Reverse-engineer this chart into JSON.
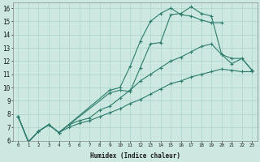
{
  "xlabel": "Humidex (Indice chaleur)",
  "bg_color": "#cce8e0",
  "line_color": "#2e7d6e",
  "grid_color": "#aad4cc",
  "xlim": [
    -0.5,
    23.5
  ],
  "ylim": [
    6,
    16.4
  ],
  "yticks": [
    6,
    7,
    8,
    9,
    10,
    11,
    12,
    13,
    14,
    15,
    16
  ],
  "xtick_labels": [
    "0",
    "1",
    "2",
    "3",
    "4",
    "5",
    "6",
    "7",
    "8",
    "9",
    "10",
    "11",
    "12",
    "13",
    "14",
    "15",
    "16",
    "17",
    "18",
    "19",
    "20",
    "21",
    "22",
    "23"
  ],
  "series": [
    {
      "x": [
        0,
        1,
        2,
        3,
        4,
        9,
        10,
        11,
        12,
        13,
        14,
        15,
        16,
        17,
        18,
        19,
        20
      ],
      "y": [
        7.8,
        5.9,
        6.7,
        7.2,
        6.6,
        9.8,
        10.0,
        11.6,
        13.5,
        15.0,
        15.6,
        16.0,
        15.5,
        15.4,
        15.1,
        14.9,
        14.9
      ]
    },
    {
      "x": [
        0,
        1,
        2,
        3,
        4,
        9,
        10,
        11,
        12,
        13,
        14,
        15,
        16,
        17,
        18,
        19,
        20,
        21,
        22,
        23
      ],
      "y": [
        7.8,
        5.9,
        6.7,
        7.2,
        6.6,
        9.6,
        9.8,
        9.7,
        11.5,
        13.3,
        13.4,
        15.5,
        15.6,
        16.1,
        15.6,
        15.4,
        12.5,
        12.2,
        12.2,
        11.3
      ]
    },
    {
      "x": [
        0,
        1,
        2,
        3,
        4,
        5,
        6,
        7,
        8,
        9,
        10,
        11,
        12,
        13,
        14,
        15,
        16,
        17,
        18,
        19,
        20,
        21,
        22,
        23
      ],
      "y": [
        7.8,
        5.9,
        6.7,
        7.2,
        6.6,
        7.2,
        7.5,
        7.7,
        8.3,
        8.6,
        9.2,
        9.8,
        10.5,
        11.0,
        11.5,
        12.0,
        12.3,
        12.7,
        13.1,
        13.3,
        12.5,
        11.8,
        12.2,
        11.3
      ]
    },
    {
      "x": [
        0,
        1,
        2,
        3,
        4,
        5,
        6,
        7,
        8,
        9,
        10,
        11,
        12,
        13,
        14,
        15,
        16,
        17,
        18,
        19,
        20,
        21,
        22,
        23
      ],
      "y": [
        7.8,
        5.9,
        6.7,
        7.2,
        6.6,
        7.0,
        7.3,
        7.5,
        7.8,
        8.1,
        8.4,
        8.8,
        9.1,
        9.5,
        9.9,
        10.3,
        10.5,
        10.8,
        11.0,
        11.2,
        11.4,
        11.3,
        11.2,
        11.2
      ]
    }
  ]
}
